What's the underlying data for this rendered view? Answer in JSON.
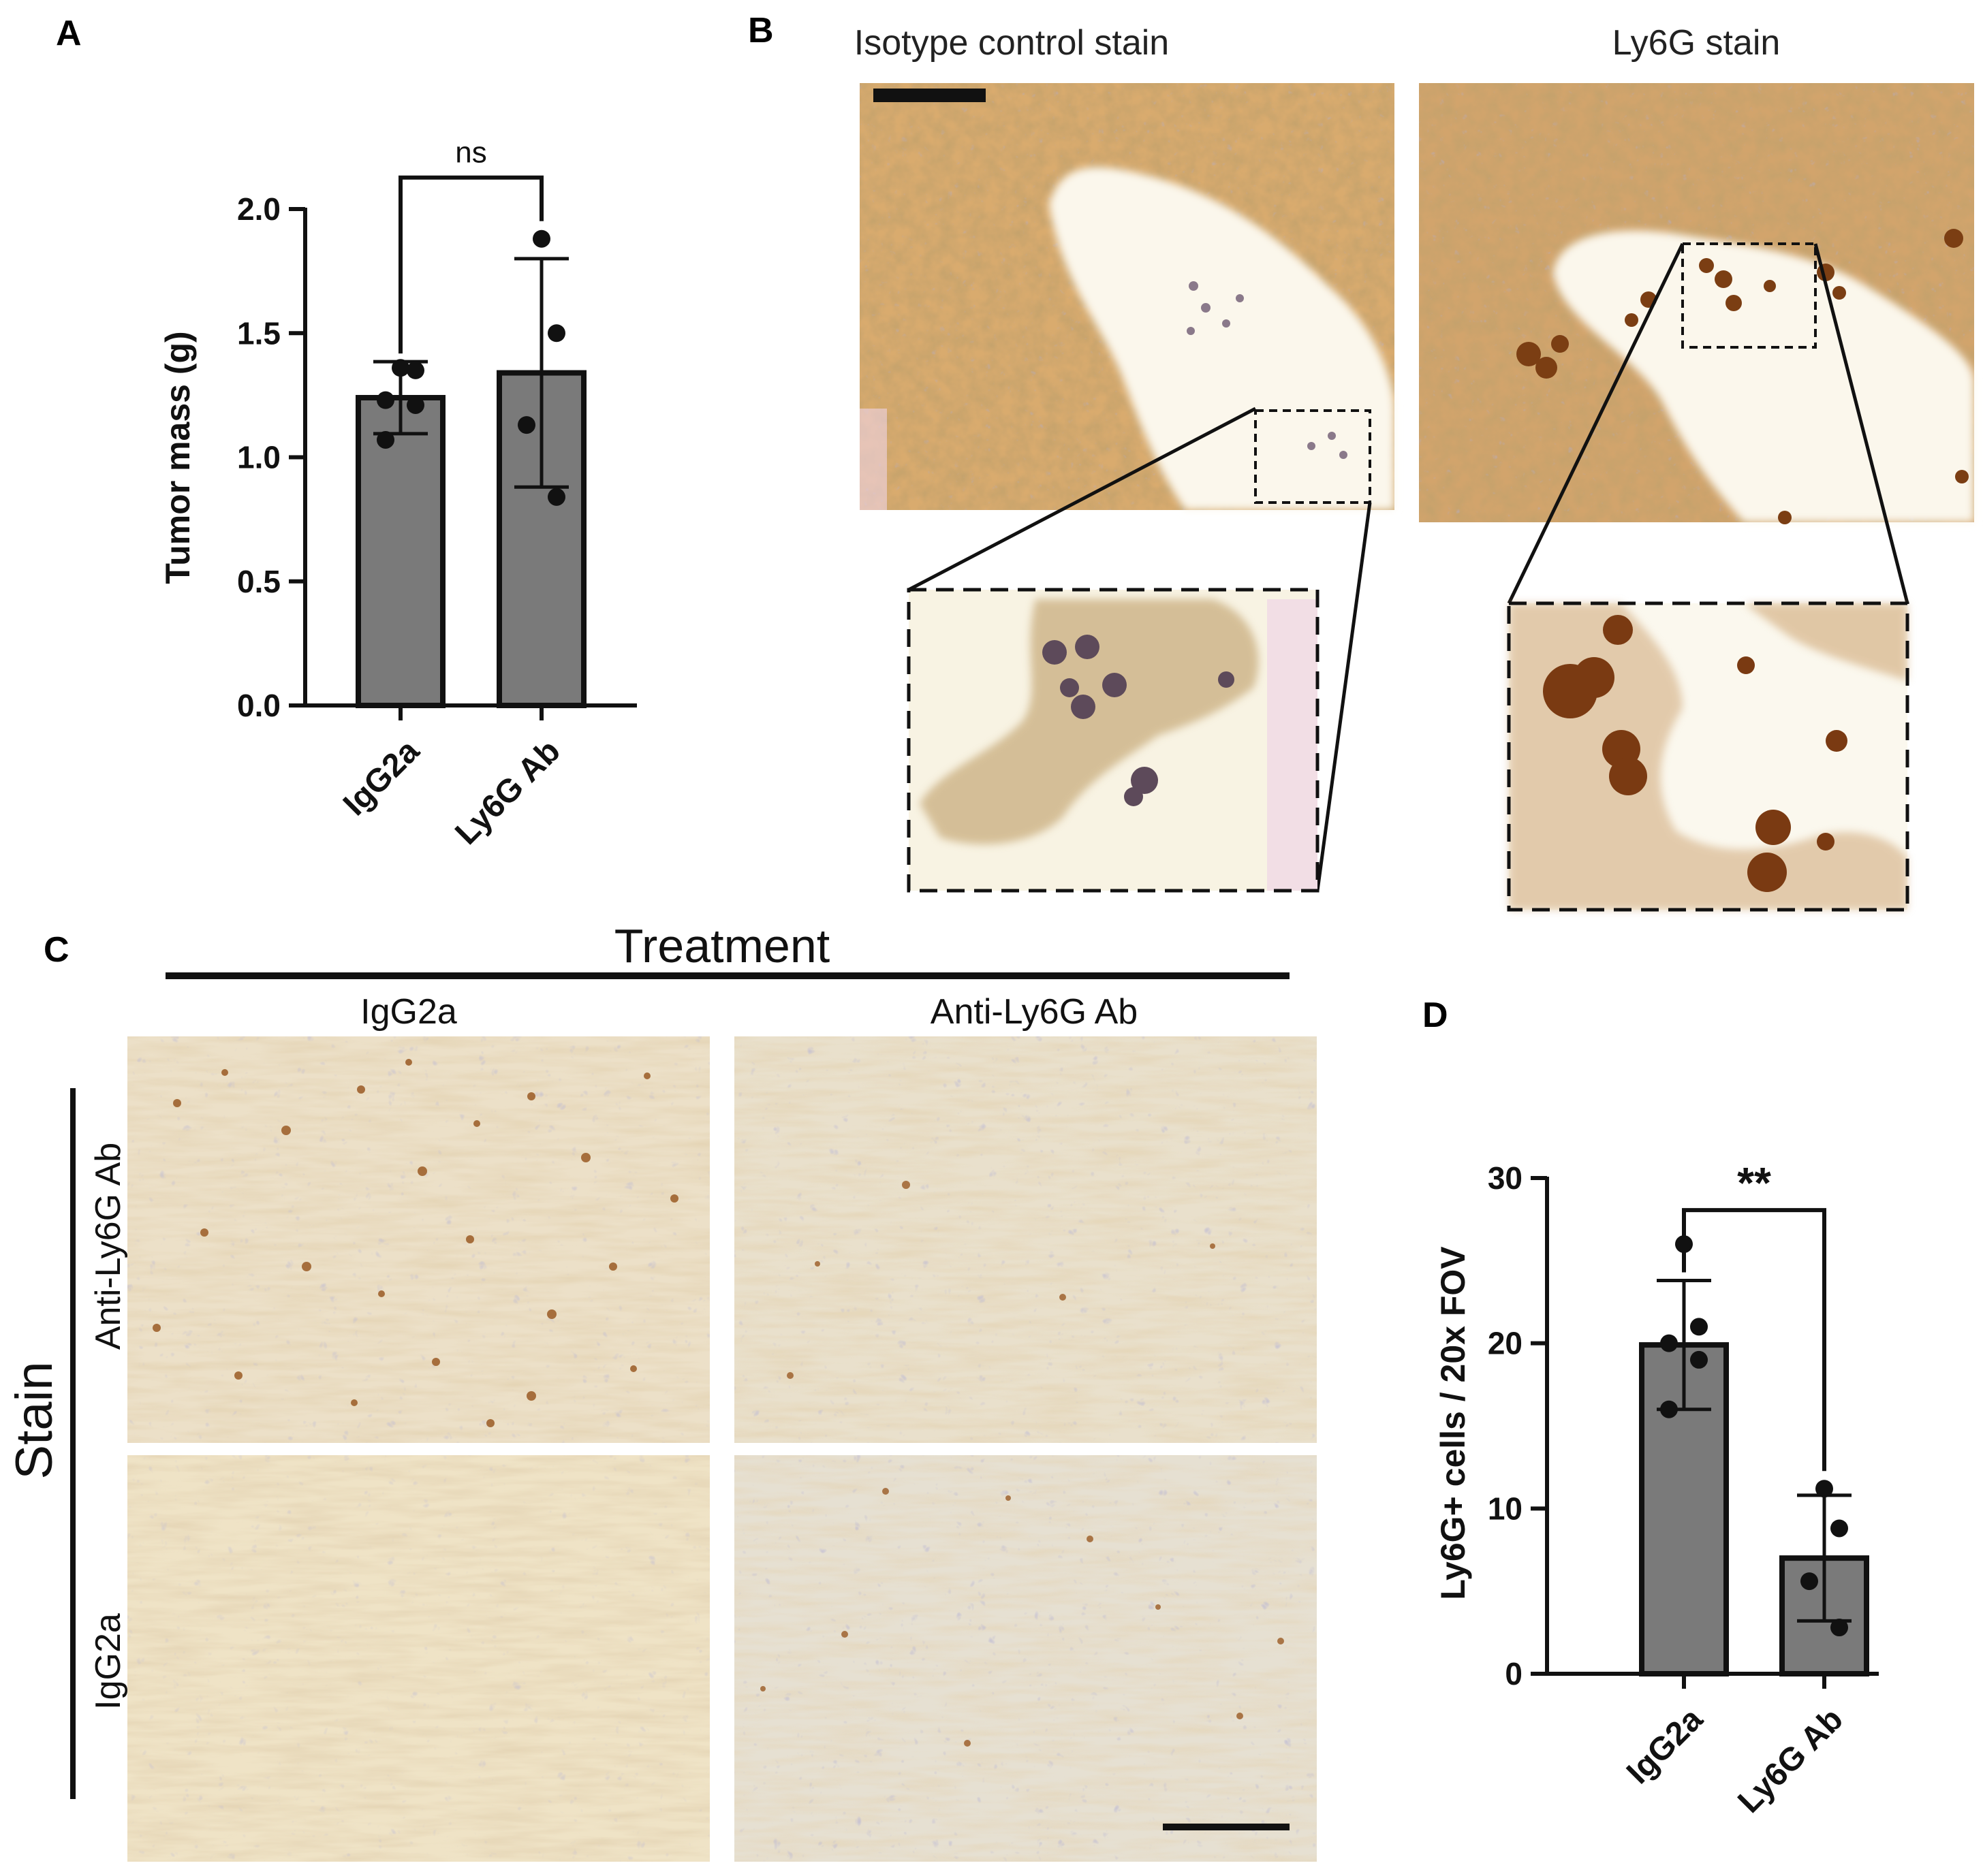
{
  "panels": {
    "A": "A",
    "B": "B",
    "C": "C",
    "D": "D"
  },
  "panel_b": {
    "left_title": "Isotype control stain",
    "right_title": "Ly6G stain"
  },
  "panel_c": {
    "treatment_label": "Treatment",
    "col_labels": [
      "IgG2a",
      "Anti-Ly6G Ab"
    ],
    "stain_label": "Stain",
    "row_labels": [
      "Anti-Ly6G Ab",
      "IgG2a"
    ]
  },
  "colors": {
    "bar": "#7a7a7a",
    "tissue_brown": "#c99a5b",
    "tissue_pale": "#efe5cf",
    "lumen": "#fbf8ee",
    "nuclei": "#7c7393",
    "ly6g_cell": "#8a4a1c"
  },
  "chart_data": [
    {
      "type": "bar",
      "panel": "A",
      "categories": [
        "IgG2a",
        "Ly6G Ab"
      ],
      "values": [
        1.24,
        1.34
      ],
      "error": [
        0.145,
        0.46
      ],
      "points": [
        [
          1.36,
          1.35,
          1.23,
          1.21,
          1.07
        ],
        [
          1.88,
          1.5,
          1.13,
          0.84
        ]
      ],
      "ylabel": "Tumor mass (g)",
      "ylim": [
        0,
        2.0
      ],
      "yticks": [
        0,
        0.5,
        1.0,
        1.5,
        2.0
      ],
      "ytick_labels": [
        "0.0",
        "0.5",
        "1.0",
        "1.5",
        "2.0"
      ],
      "significance": "ns"
    },
    {
      "type": "bar",
      "panel": "D",
      "categories": [
        "IgG2a",
        "Ly6G Ab"
      ],
      "values": [
        19.9,
        7.0
      ],
      "error": [
        3.9,
        3.8
      ],
      "points": [
        [
          26,
          21,
          20,
          19,
          16
        ],
        [
          11.2,
          8.8,
          5.6,
          2.8
        ]
      ],
      "ylabel": "Ly6G+ cells / 20x FOV",
      "ylim": [
        0,
        30
      ],
      "yticks": [
        0,
        10,
        20,
        30
      ],
      "ytick_labels": [
        "0",
        "10",
        "20",
        "30"
      ],
      "significance": "**"
    }
  ]
}
